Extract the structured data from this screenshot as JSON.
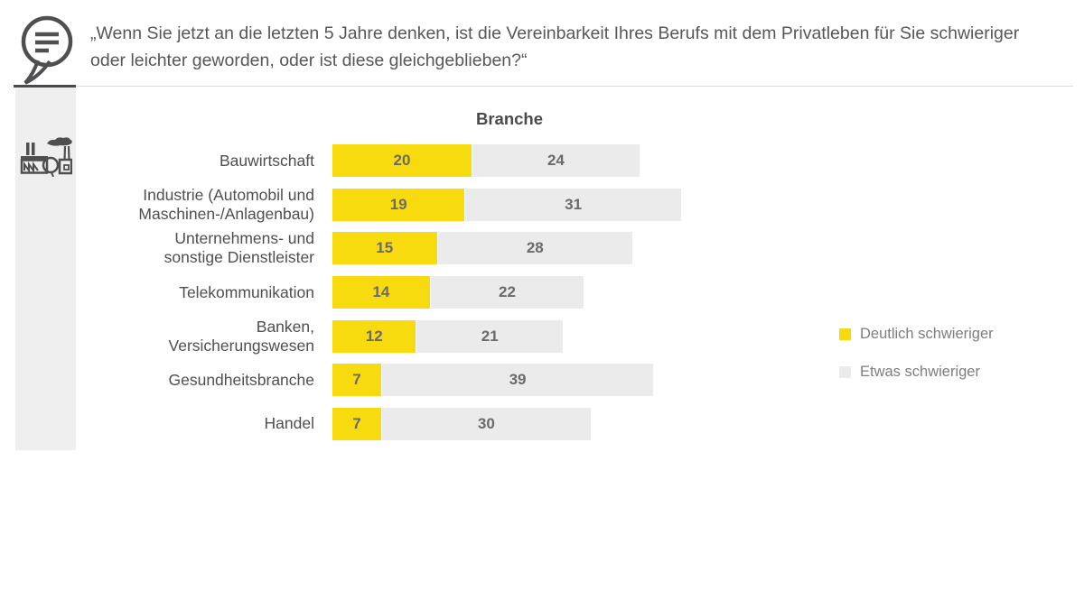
{
  "header": {
    "quote": "„Wenn Sie jetzt an die letzten 5 Jahre denken, ist die Vereinbarkeit Ihres Berufs mit dem Privatleben für Sie schwieriger oder leichter geworden, oder ist diese gleichgeblieben?“"
  },
  "icons": {
    "quote_icon": "speech-bubble-icon",
    "sidebar_icon": "factory-icon"
  },
  "colors": {
    "yellow": "#F8DB0F",
    "light_gray": "#EBEBEB",
    "text_gray": "#57575A"
  },
  "chart_data": {
    "type": "bar",
    "orientation": "horizontal",
    "stacked": true,
    "title": "Branche",
    "value_labels": true,
    "legend_position": "right",
    "categories": [
      "Bauwirtschaft",
      [
        "Industrie (Automobil und",
        "Maschinen-/Anlagenbau)"
      ],
      [
        "Unternehmens- und",
        "sonstige Dienstleister"
      ],
      "Telekommunikation",
      [
        "Banken,",
        "Versicherungswesen"
      ],
      "Gesundheitsbranche",
      "Handel"
    ],
    "series": [
      {
        "name": "Deutlich schwieriger",
        "color": "#F8DB0F",
        "values": [
          20,
          19,
          15,
          14,
          12,
          7,
          7
        ]
      },
      {
        "name": "Etwas schwieriger",
        "color": "#EBEBEB",
        "values": [
          24,
          31,
          28,
          22,
          21,
          39,
          30
        ]
      }
    ]
  }
}
